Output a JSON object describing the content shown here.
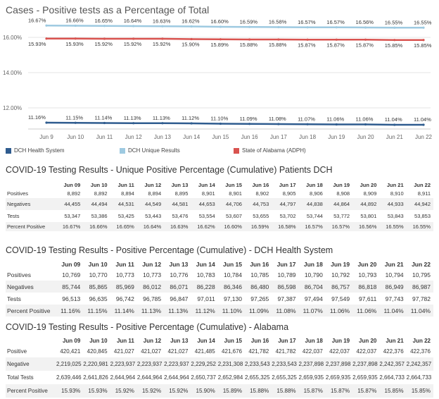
{
  "chart": {
    "title": "Cases - Positive tests as a Percentage of Total",
    "y_ticks": [
      "16.00%",
      "14.00%",
      "12.00%"
    ]
  },
  "chart_data": {
    "type": "line",
    "title": "Cases - Positive tests as a Percentage of Total",
    "x": [
      "Jun 9",
      "Jun 10",
      "Jun 11",
      "Jun 12",
      "Jun 13",
      "Jun 14",
      "Jun 15",
      "Jun 16",
      "Jun 17",
      "Jun 18",
      "Jun 19",
      "Jun 20",
      "Jun 21",
      "Jun 22"
    ],
    "ylim": [
      11.0,
      16.9
    ],
    "y_ticks": [
      12,
      14,
      16
    ],
    "grid": true,
    "legend_position": "bottom",
    "series": [
      {
        "name": "DCH Unique Results",
        "color": "#9ecae1",
        "values": [
          16.67,
          16.66,
          16.65,
          16.64,
          16.63,
          16.62,
          16.6,
          16.59,
          16.58,
          16.57,
          16.57,
          16.56,
          16.55,
          16.55
        ],
        "labels": [
          "16.67%",
          "16.66%",
          "16.65%",
          "16.64%",
          "16.63%",
          "16.62%",
          "16.60%",
          "16.59%",
          "16.58%",
          "16.57%",
          "16.57%",
          "16.56%",
          "16.55%",
          "16.55%"
        ]
      },
      {
        "name": "State of Alabama (ADPH)",
        "color": "#d9534f",
        "values": [
          15.93,
          15.93,
          15.92,
          15.92,
          15.92,
          15.9,
          15.89,
          15.88,
          15.88,
          15.87,
          15.87,
          15.87,
          15.85,
          15.85
        ],
        "labels": [
          "15.93%",
          "15.93%",
          "15.92%",
          "15.92%",
          "15.92%",
          "15.90%",
          "15.89%",
          "15.88%",
          "15.88%",
          "15.87%",
          "15.87%",
          "15.87%",
          "15.85%",
          "15.85%"
        ]
      },
      {
        "name": "DCH Health System",
        "color": "#2f5c8f",
        "values": [
          11.16,
          11.15,
          11.14,
          11.13,
          11.13,
          11.12,
          11.1,
          11.09,
          11.08,
          11.07,
          11.06,
          11.06,
          11.04,
          11.04
        ],
        "labels": [
          "11.16%",
          "11.15%",
          "11.14%",
          "11.13%",
          "11.13%",
          "11.12%",
          "11.10%",
          "11.09%",
          "11.08%",
          "11.07%",
          "11.06%",
          "11.06%",
          "11.04%",
          "11.04%"
        ]
      }
    ]
  },
  "legend": [
    {
      "label": "DCH Health System",
      "color": "#2f5c8f"
    },
    {
      "label": "DCH Unique Results",
      "color": "#9ecae1"
    },
    {
      "label": "State of Alabama (ADPH)",
      "color": "#d9534f"
    }
  ],
  "tables": [
    {
      "title": "COVID-19 Testing Results - Unique Positive Percentage (Cumulative) Patients DCH",
      "headers": [
        "",
        "Jun 09",
        "Jun 10",
        "Jun 11",
        "Jun 12",
        "Jun 13",
        "Jun 14",
        "Jun 15",
        "Jun 16",
        "Jun 17",
        "Jun 18",
        "Jun 19",
        "Jun 20",
        "Jun 21",
        "Jun 22"
      ],
      "rows": [
        [
          "Positives",
          "8,892",
          "8,892",
          "8,894",
          "8,894",
          "8,895",
          "8,901",
          "8,901",
          "8,902",
          "8,905",
          "8,906",
          "8,908",
          "8,909",
          "8,910",
          "8,911"
        ],
        [
          "Negatives",
          "44,455",
          "44,494",
          "44,531",
          "44,549",
          "44,581",
          "44,653",
          "44,706",
          "44,753",
          "44,797",
          "44,838",
          "44,864",
          "44,892",
          "44,933",
          "44,942"
        ],
        [
          "Tests",
          "53,347",
          "53,386",
          "53,425",
          "53,443",
          "53,476",
          "53,554",
          "53,607",
          "53,655",
          "53,702",
          "53,744",
          "53,772",
          "53,801",
          "53,843",
          "53,853"
        ],
        [
          "Percent Positive",
          "16.67%",
          "16.66%",
          "16.65%",
          "16.64%",
          "16.63%",
          "16.62%",
          "16.60%",
          "16.59%",
          "16.58%",
          "16.57%",
          "16.57%",
          "16.56%",
          "16.55%",
          "16.55%"
        ]
      ]
    },
    {
      "title": "COVID-19 Testing Results - Positive Percentage (Cumulative) - DCH Health System",
      "headers": [
        "",
        "Jun 09",
        "Jun 10",
        "Jun 11",
        "Jun 12",
        "Jun 13",
        "Jun 14",
        "Jun 15",
        "Jun 16",
        "Jun 17",
        "Jun 18",
        "Jun 19",
        "Jun 20",
        "Jun 21",
        "Jun 22"
      ],
      "rows": [
        [
          "Positives",
          "10,769",
          "10,770",
          "10,773",
          "10,773",
          "10,776",
          "10,783",
          "10,784",
          "10,785",
          "10,789",
          "10,790",
          "10,792",
          "10,793",
          "10,794",
          "10,795"
        ],
        [
          "Negatives",
          "85,744",
          "85,865",
          "85,969",
          "86,012",
          "86,071",
          "86,228",
          "86,346",
          "86,480",
          "86,598",
          "86,704",
          "86,757",
          "86,818",
          "86,949",
          "86,987"
        ],
        [
          "Tests",
          "96,513",
          "96,635",
          "96,742",
          "96,785",
          "96,847",
          "97,011",
          "97,130",
          "97,265",
          "97,387",
          "97,494",
          "97,549",
          "97,611",
          "97,743",
          "97,782"
        ],
        [
          "Percent Positive",
          "11.16%",
          "11.15%",
          "11.14%",
          "11.13%",
          "11.13%",
          "11.12%",
          "11.10%",
          "11.09%",
          "11.08%",
          "11.07%",
          "11.06%",
          "11.06%",
          "11.04%",
          "11.04%"
        ]
      ]
    },
    {
      "title": "COVID-19 Testing Results - Positive Percentage (Cumulative) - Alabama",
      "headers": [
        "",
        "Jun 09",
        "Jun 10",
        "Jun 11",
        "Jun 12",
        "Jun 13",
        "Jun 14",
        "Jun 15",
        "Jun 16",
        "Jun 17",
        "Jun 18",
        "Jun 19",
        "Jun 20",
        "Jun 21",
        "Jun 22"
      ],
      "rows": [
        [
          "Positive",
          "420,421",
          "420,845",
          "421,027",
          "421,027",
          "421,027",
          "421,485",
          "421,676",
          "421,782",
          "421,782",
          "422,037",
          "422,037",
          "422,037",
          "422,376",
          "422,376"
        ],
        [
          "Negative",
          "2,219,025",
          "2,220,981",
          "2,223,937",
          "2,223,937",
          "2,223,937",
          "2,229,252",
          "2,231,308",
          "2,233,543",
          "2,233,543",
          "2,237,898",
          "2,237,898",
          "2,237,898",
          "2,242,357",
          "2,242,357"
        ],
        [
          "Total Tests",
          "2,639,446",
          "2,641,826",
          "2,644,964",
          "2,644,964",
          "2,644,964",
          "2,650,737",
          "2,652,984",
          "2,655,325",
          "2,655,325",
          "2,659,935",
          "2,659,935",
          "2,659,935",
          "2,664,733",
          "2,664,733"
        ],
        [
          "Percent Positive",
          "15.93%",
          "15.93%",
          "15.92%",
          "15.92%",
          "15.92%",
          "15.90%",
          "15.89%",
          "15.88%",
          "15.88%",
          "15.87%",
          "15.87%",
          "15.87%",
          "15.85%",
          "15.85%"
        ]
      ]
    }
  ]
}
